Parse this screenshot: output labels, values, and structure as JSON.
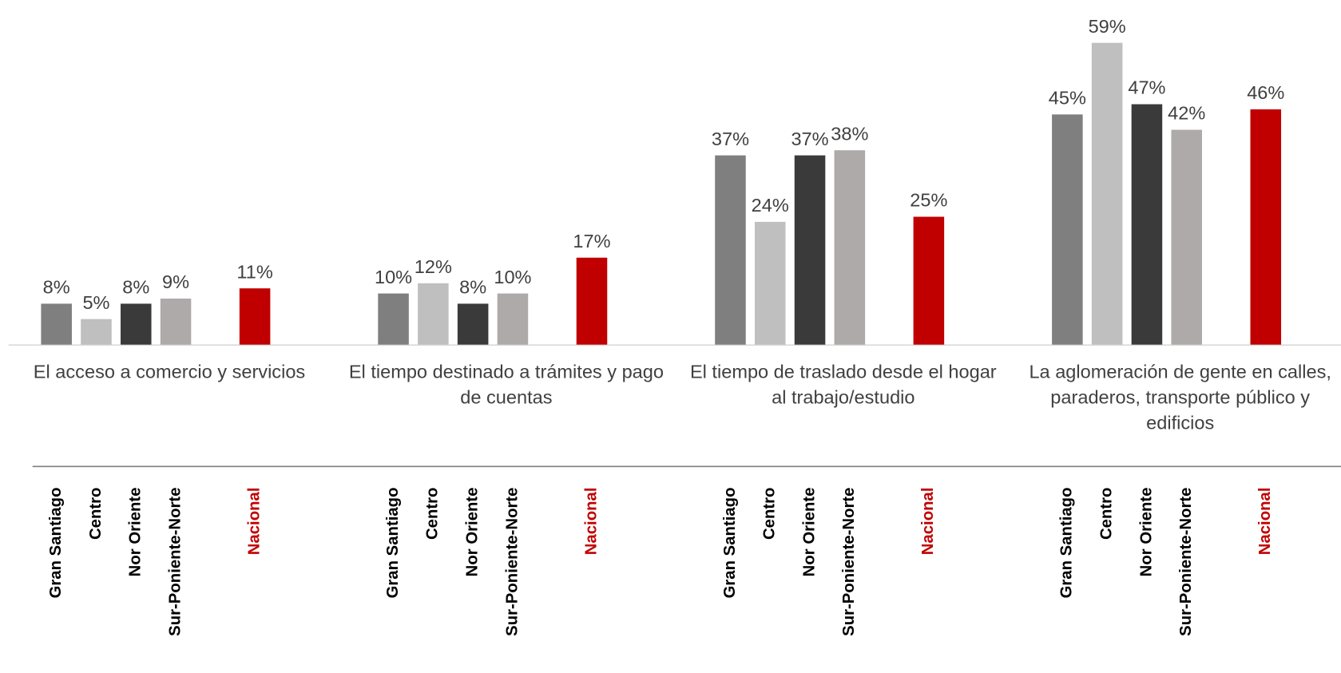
{
  "chart_data": {
    "type": "bar",
    "categories": [
      "El acceso a comercio y servicios",
      "El tiempo destinado a trámites y pago de cuentas",
      "El tiempo de traslado desde el hogar al trabajo/estudio",
      "La aglomeración de gente en calles, paraderos, transporte público y edificios"
    ],
    "series": [
      {
        "name": "Gran Santiago",
        "color": "#7f7f7f",
        "values": [
          8,
          10,
          37,
          45
        ],
        "value_labels": [
          "8%",
          "10%",
          "37%",
          "45%"
        ]
      },
      {
        "name": "Centro",
        "color": "#bfbfbf",
        "values": [
          5,
          12,
          24,
          59
        ],
        "value_labels": [
          "5%",
          "12%",
          "24%",
          "59%"
        ]
      },
      {
        "name": "Nor Oriente",
        "color": "#3a3a3a",
        "values": [
          8,
          8,
          37,
          47
        ],
        "value_labels": [
          "8%",
          "8%",
          "37%",
          "47%"
        ]
      },
      {
        "name": "Sur-Poniente-Norte",
        "color": "#aeaaaa",
        "values": [
          9,
          10,
          38,
          42
        ],
        "value_labels": [
          "9%",
          "10%",
          "38%",
          "42%"
        ]
      },
      {
        "name": "Nacional",
        "color": "#c00000",
        "values": [
          11,
          17,
          25,
          46
        ],
        "value_labels": [
          "11%",
          "17%",
          "25%",
          "46%"
        ]
      }
    ],
    "ylim": [
      0,
      60
    ]
  }
}
